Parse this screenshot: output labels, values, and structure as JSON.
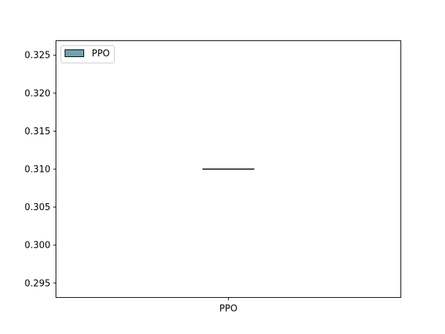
{
  "chart_data": {
    "type": "box",
    "title": "",
    "xlabel": "",
    "ylabel": "",
    "categories": [
      "PPO"
    ],
    "series": [
      {
        "name": "PPO",
        "color": "#6fa3ad",
        "values": {
          "min": 0.31,
          "q1": 0.31,
          "median": 0.31,
          "q3": 0.31,
          "max": 0.31
        }
      }
    ],
    "ylim": [
      0.2931,
      0.3269
    ],
    "yticks": [
      0.295,
      0.3,
      0.305,
      0.31,
      0.315,
      0.32,
      0.325
    ],
    "ytick_labels": [
      "0.295",
      "0.300",
      "0.305",
      "0.310",
      "0.315",
      "0.320",
      "0.325"
    ],
    "xtick_labels": [
      "PPO"
    ],
    "legend": {
      "position": "top-left",
      "entries": [
        "PPO"
      ]
    },
    "grid": false
  }
}
